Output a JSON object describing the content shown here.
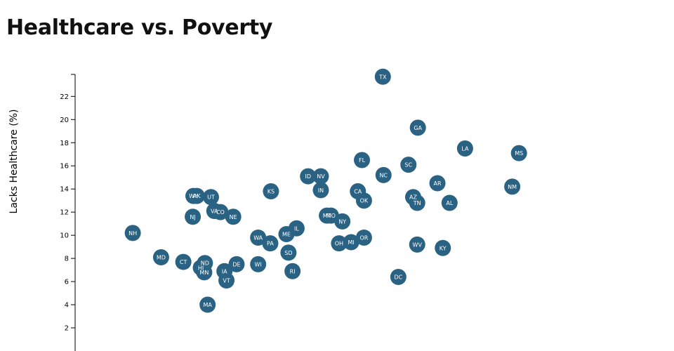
{
  "page": {
    "title": "Healthcare vs. Poverty"
  },
  "chart_data": {
    "type": "scatter",
    "title": "Healthcare vs. Poverty",
    "ylabel": "Lacks Healthcare (%)",
    "xlabel": "",
    "ylim": [
      0,
      23.9
    ],
    "yticks": [
      2,
      4,
      6,
      8,
      10,
      12,
      14,
      16,
      18,
      20,
      22
    ],
    "xlim": [
      0,
      100
    ],
    "marker_color": "#2a6283",
    "label_color": "#ffffff",
    "points": [
      {
        "label": "TX",
        "x": 56.8,
        "y": 23.7
      },
      {
        "label": "GA",
        "x": 62.0,
        "y": 19.3
      },
      {
        "label": "LA",
        "x": 69.0,
        "y": 17.5
      },
      {
        "label": "MS",
        "x": 77.0,
        "y": 17.1
      },
      {
        "label": "FL",
        "x": 53.7,
        "y": 16.5
      },
      {
        "label": "SC",
        "x": 60.6,
        "y": 16.1
      },
      {
        "label": "NC",
        "x": 56.9,
        "y": 15.2
      },
      {
        "label": "ID",
        "x": 45.7,
        "y": 15.1
      },
      {
        "label": "NV",
        "x": 47.6,
        "y": 15.1
      },
      {
        "label": "AR",
        "x": 64.9,
        "y": 14.5
      },
      {
        "label": "NM",
        "x": 76.0,
        "y": 14.2
      },
      {
        "label": "IN",
        "x": 47.6,
        "y": 13.9
      },
      {
        "label": "KS",
        "x": 40.2,
        "y": 13.8
      },
      {
        "label": "CA",
        "x": 53.1,
        "y": 13.8
      },
      {
        "label": "WY",
        "x": 28.7,
        "y": 13.4
      },
      {
        "label": "AK",
        "x": 29.2,
        "y": 13.4
      },
      {
        "label": "UT",
        "x": 31.3,
        "y": 13.3
      },
      {
        "label": "AZ",
        "x": 61.3,
        "y": 13.3
      },
      {
        "label": "OK",
        "x": 54.0,
        "y": 13.0
      },
      {
        "label": "AL",
        "x": 66.7,
        "y": 12.8
      },
      {
        "label": "TN",
        "x": 61.9,
        "y": 12.8
      },
      {
        "label": "VA",
        "x": 31.8,
        "y": 12.1
      },
      {
        "label": "CO",
        "x": 32.7,
        "y": 12.0
      },
      {
        "label": "NJ",
        "x": 28.6,
        "y": 11.6
      },
      {
        "label": "NE",
        "x": 34.6,
        "y": 11.6
      },
      {
        "label": "MT",
        "x": 48.5,
        "y": 11.7
      },
      {
        "label": "MO",
        "x": 49.1,
        "y": 11.7
      },
      {
        "label": "NY",
        "x": 50.8,
        "y": 11.2
      },
      {
        "label": "IL",
        "x": 44.0,
        "y": 10.6
      },
      {
        "label": "NH",
        "x": 19.7,
        "y": 10.2
      },
      {
        "label": "ME",
        "x": 42.5,
        "y": 10.1
      },
      {
        "label": "WA",
        "x": 38.3,
        "y": 9.8
      },
      {
        "label": "OR",
        "x": 54.0,
        "y": 9.8
      },
      {
        "label": "PA",
        "x": 40.1,
        "y": 9.3
      },
      {
        "label": "OH",
        "x": 50.3,
        "y": 9.3
      },
      {
        "label": "MI",
        "x": 52.1,
        "y": 9.4
      },
      {
        "label": "WV",
        "x": 61.9,
        "y": 9.2
      },
      {
        "label": "KY",
        "x": 65.7,
        "y": 8.9
      },
      {
        "label": "SD",
        "x": 42.8,
        "y": 8.5
      },
      {
        "label": "MD",
        "x": 23.9,
        "y": 8.1
      },
      {
        "label": "CT",
        "x": 27.2,
        "y": 7.7
      },
      {
        "label": "ND",
        "x": 30.4,
        "y": 7.6
      },
      {
        "label": "DE",
        "x": 35.1,
        "y": 7.5
      },
      {
        "label": "WI",
        "x": 38.3,
        "y": 7.5
      },
      {
        "label": "HI",
        "x": 29.8,
        "y": 7.2
      },
      {
        "label": "IA",
        "x": 33.3,
        "y": 6.9
      },
      {
        "label": "RI",
        "x": 43.4,
        "y": 6.9
      },
      {
        "label": "MN",
        "x": 30.3,
        "y": 6.8
      },
      {
        "label": "DC",
        "x": 59.1,
        "y": 6.4
      },
      {
        "label": "VT",
        "x": 33.6,
        "y": 6.1
      },
      {
        "label": "MA",
        "x": 30.8,
        "y": 4.0
      }
    ]
  }
}
